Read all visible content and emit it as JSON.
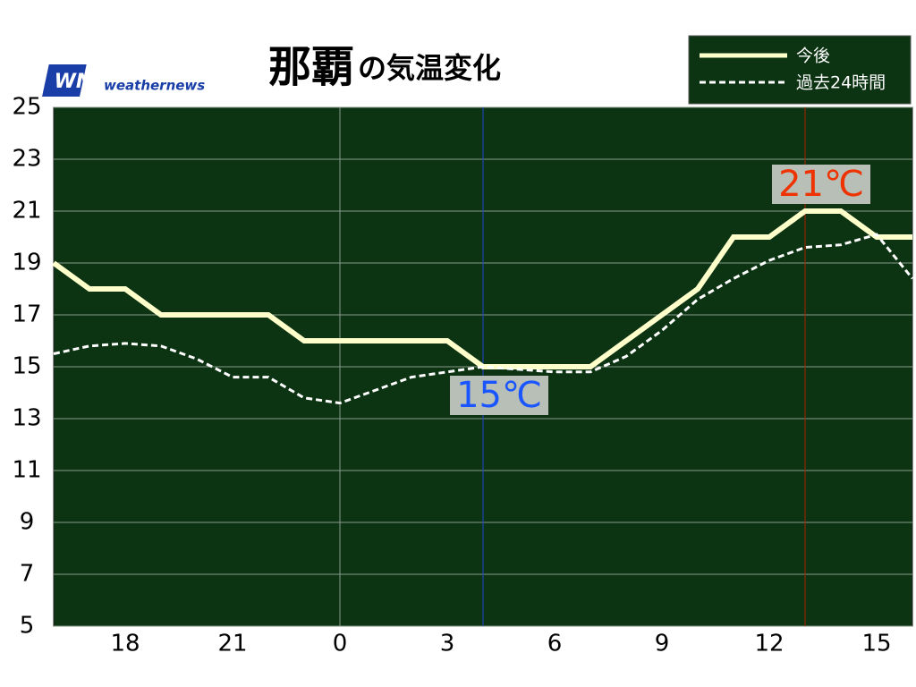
{
  "logo": {
    "mark": "WN",
    "text": "weathernews"
  },
  "chart_data": {
    "type": "line",
    "title": "那覇",
    "subtitle": "の気温変化",
    "x": [
      16,
      17,
      18,
      19,
      20,
      21,
      22,
      23,
      24,
      25,
      26,
      27,
      28,
      29,
      30,
      31,
      32,
      33,
      34,
      35,
      36,
      37,
      38,
      39,
      40
    ],
    "series": [
      {
        "name": "今後",
        "color": "#ffffcc",
        "style": "solid",
        "values": [
          19,
          18,
          18,
          17,
          17,
          17,
          17,
          16,
          16,
          16,
          16,
          16,
          15,
          15,
          15,
          15,
          16,
          17,
          18,
          20,
          20,
          21,
          21,
          20,
          20
        ]
      },
      {
        "name": "過去24時間",
        "color": "#ffffff",
        "style": "dashed",
        "values": [
          15.5,
          15.8,
          15.9,
          15.8,
          15.3,
          14.6,
          14.6,
          13.8,
          13.6,
          14.1,
          14.6,
          14.8,
          15.0,
          14.9,
          14.8,
          14.8,
          15.4,
          16.4,
          17.6,
          18.4,
          19.1,
          19.6,
          19.7,
          20.1,
          18.4
        ]
      }
    ],
    "xlim": [
      16,
      40
    ],
    "xticks": [
      18,
      21,
      {
        "value": 24,
        "label": "0"
      },
      {
        "value": 27,
        "label": "3"
      },
      {
        "value": 30,
        "label": "6"
      },
      {
        "value": 33,
        "label": "9"
      },
      {
        "value": 36,
        "label": "12"
      },
      {
        "value": 39,
        "label": "15"
      }
    ],
    "ylim": [
      5,
      25
    ],
    "yticks": [
      5,
      7,
      9,
      11,
      13,
      15,
      17,
      19,
      21,
      23,
      25
    ],
    "grid": true,
    "background": "#0c3312",
    "legend": "top-right",
    "annotations": [
      {
        "x": 28,
        "value": 15,
        "text": "15℃",
        "color": "#1a55ff",
        "line_color": "#2244cc"
      },
      {
        "x": 37,
        "value": 21,
        "text": "21℃",
        "color": "#ee3300",
        "line_color": "#aa2200"
      }
    ]
  }
}
